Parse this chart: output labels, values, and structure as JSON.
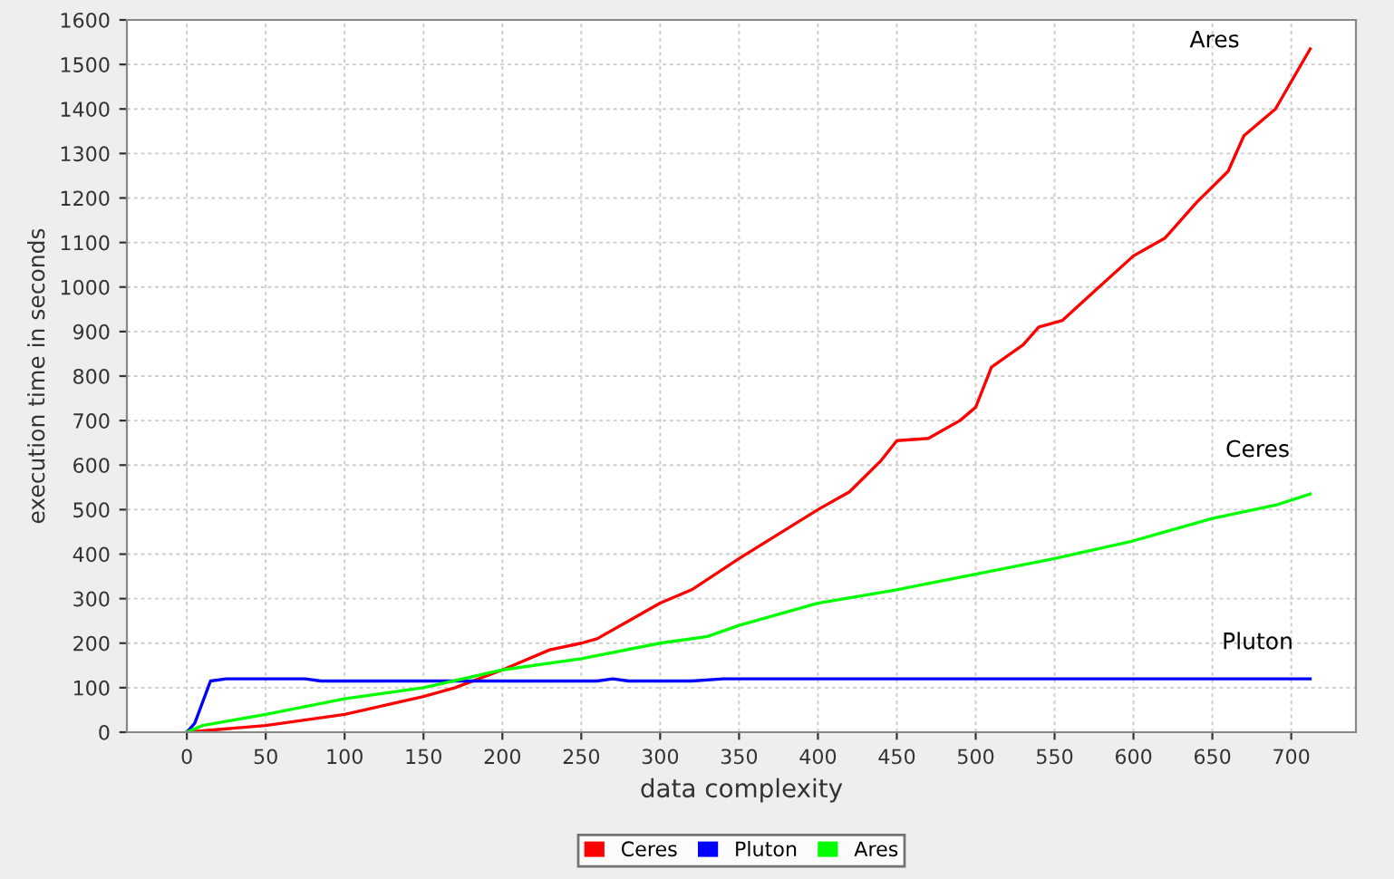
{
  "chart_data": {
    "type": "line",
    "xlabel": "data complexity",
    "ylabel": "execution time in seconds",
    "xlim": [
      -38,
      741
    ],
    "ylim": [
      0,
      1600
    ],
    "xticks": [
      0,
      50,
      100,
      150,
      200,
      250,
      300,
      350,
      400,
      450,
      500,
      550,
      600,
      650,
      700
    ],
    "yticks": [
      0,
      100,
      200,
      300,
      400,
      500,
      600,
      700,
      800,
      900,
      1000,
      1100,
      1200,
      1300,
      1400,
      1500,
      1600
    ],
    "grid": true,
    "legend": "bottom",
    "marker": "none",
    "line_style": "solid",
    "series": [
      {
        "name": "Ceres",
        "color": "#ff0000",
        "x": [
          0,
          50,
          100,
          150,
          170,
          200,
          230,
          250,
          260,
          280,
          300,
          320,
          350,
          400,
          420,
          440,
          450,
          470,
          490,
          500,
          510,
          530,
          540,
          555,
          575,
          600,
          620,
          640,
          660,
          670,
          690,
          712
        ],
        "values": [
          0,
          15,
          40,
          80,
          100,
          140,
          185,
          200,
          210,
          250,
          290,
          320,
          390,
          500,
          540,
          610,
          655,
          660,
          700,
          730,
          820,
          870,
          910,
          925,
          990,
          1070,
          1110,
          1190,
          1260,
          1340,
          1400,
          1535
        ]
      },
      {
        "name": "Pluton",
        "color": "#0000ff",
        "x": [
          0,
          5,
          15,
          25,
          75,
          85,
          260,
          270,
          280,
          320,
          340,
          712
        ],
        "values": [
          0,
          20,
          115,
          120,
          120,
          115,
          115,
          120,
          115,
          115,
          120,
          120
        ]
      },
      {
        "name": "Ares",
        "color": "#00ff00",
        "x": [
          0,
          10,
          50,
          100,
          150,
          200,
          250,
          300,
          330,
          350,
          400,
          450,
          500,
          550,
          600,
          650,
          690,
          712
        ],
        "values": [
          0,
          15,
          40,
          75,
          100,
          140,
          165,
          200,
          215,
          240,
          290,
          320,
          355,
          390,
          430,
          480,
          510,
          535
        ]
      }
    ],
    "annotations": [
      "Ares",
      "Ceres",
      "Pluton"
    ]
  }
}
